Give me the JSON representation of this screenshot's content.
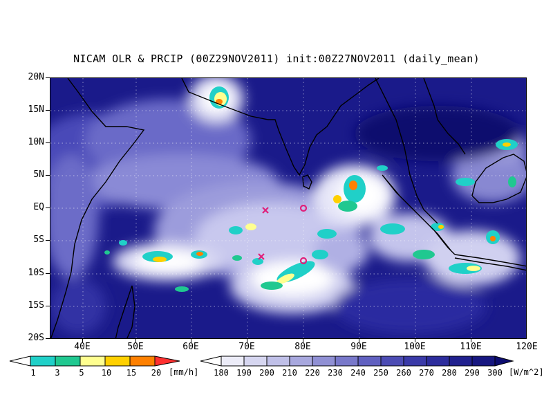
{
  "title": "NICAM OLR & PRCIP (00Z29NOV2011) init:00Z27NOV2011 (daily_mean)",
  "axes": {
    "y_labels": [
      "20N",
      "15N",
      "10N",
      "5N",
      "EQ",
      "5S",
      "10S",
      "15S",
      "20S"
    ],
    "x_labels": [
      "40E",
      "50E",
      "60E",
      "70E",
      "80E",
      "90E",
      "100E",
      "110E",
      "120E"
    ],
    "lon_range": [
      35,
      120
    ],
    "lat_range": [
      -20,
      20
    ],
    "grid": "dotted"
  },
  "precip_colorbar": {
    "labels": [
      "1",
      "3",
      "5",
      "10",
      "15",
      "20"
    ],
    "unit": "[mm/h]",
    "colors": [
      "#ffffff",
      "#20d0c8",
      "#20c890",
      "#ffff90",
      "#ffd000",
      "#ff8000",
      "#ff3030"
    ]
  },
  "olr_colorbar": {
    "labels": [
      "180",
      "190",
      "200",
      "210",
      "220",
      "230",
      "240",
      "250",
      "260",
      "270",
      "280",
      "290",
      "300"
    ],
    "unit": "[W/m^2]",
    "colors": [
      "#ffffff",
      "#ececf8",
      "#d6d6f0",
      "#c0c0e8",
      "#a8a8de",
      "#9090d4",
      "#7878ca",
      "#6060c0",
      "#4c4cb4",
      "#3a3aa8",
      "#2c2c9c",
      "#20208e",
      "#161680",
      "#0c0c70"
    ]
  },
  "markers": [
    {
      "type": "x",
      "lon": 73,
      "lat": -1
    },
    {
      "type": "o",
      "lon": 80,
      "lat": 0
    },
    {
      "type": "x",
      "lon": 72.5,
      "lat": -7.5
    },
    {
      "type": "o",
      "lon": 80,
      "lat": -8
    }
  ],
  "colors": {
    "ocean_base": "#2a2ab0",
    "marker": "#e0207a",
    "coast": "#000000"
  }
}
